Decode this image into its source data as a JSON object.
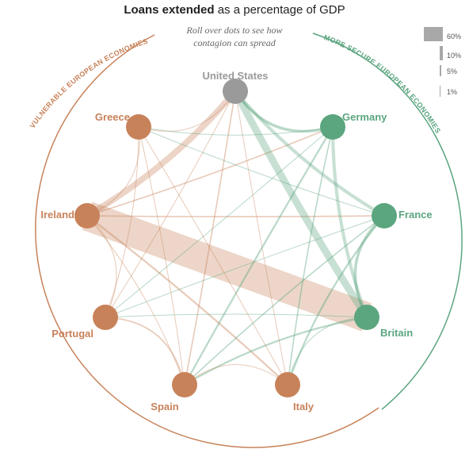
{
  "header": {
    "title_bold": "Loans extended",
    "title_rest": " as a percentage of GDP",
    "subtitle_line1": "Roll over dots to see how",
    "subtitle_line2": "contagion can spread"
  },
  "groups": {
    "vulnerable_label": "VULNERABLE EUROPEAN ECONOMIES",
    "secure_label": "MORE SECURE EUROPEAN ECONOMIES"
  },
  "colors": {
    "vulnerable": "#c8825a",
    "secure": "#5ba57f",
    "neutral": "#9a9a9a",
    "legend_swatch": "#a8a8a8"
  },
  "legend": [
    {
      "label": "60%",
      "value": 60
    },
    {
      "label": "10%",
      "value": 10
    },
    {
      "label": "5%",
      "value": 5
    },
    {
      "label": "1%",
      "value": 1
    }
  ],
  "nodes": [
    {
      "id": "us",
      "label": "United States",
      "group": "neutral"
    },
    {
      "id": "germany",
      "label": "Germany",
      "group": "secure"
    },
    {
      "id": "france",
      "label": "France",
      "group": "secure"
    },
    {
      "id": "britain",
      "label": "Britain",
      "group": "secure"
    },
    {
      "id": "italy",
      "label": "Italy",
      "group": "vulnerable"
    },
    {
      "id": "spain",
      "label": "Spain",
      "group": "vulnerable"
    },
    {
      "id": "portugal",
      "label": "Portugal",
      "group": "vulnerable"
    },
    {
      "id": "ireland",
      "label": "Ireland",
      "group": "vulnerable"
    },
    {
      "id": "greece",
      "label": "Greece",
      "group": "vulnerable"
    }
  ],
  "links": [
    {
      "from": "ireland",
      "to": "britain",
      "value": 60
    },
    {
      "from": "ireland",
      "to": "us",
      "value": 12
    },
    {
      "from": "ireland",
      "to": "france",
      "value": 2
    },
    {
      "from": "ireland",
      "to": "germany",
      "value": 2
    },
    {
      "from": "ireland",
      "to": "italy",
      "value": 3
    },
    {
      "from": "ireland",
      "to": "spain",
      "value": 1
    },
    {
      "from": "ireland",
      "to": "portugal",
      "value": 1
    },
    {
      "from": "ireland",
      "to": "greece",
      "value": 1
    },
    {
      "from": "us",
      "to": "britain",
      "value": 14
    },
    {
      "from": "us",
      "to": "france",
      "value": 6
    },
    {
      "from": "us",
      "to": "germany",
      "value": 5
    },
    {
      "from": "us",
      "to": "spain",
      "value": 2
    },
    {
      "from": "us",
      "to": "italy",
      "value": 1
    },
    {
      "from": "us",
      "to": "portugal",
      "value": 1
    },
    {
      "from": "us",
      "to": "greece",
      "value": 1
    },
    {
      "from": "germany",
      "to": "britain",
      "value": 6
    },
    {
      "from": "germany",
      "to": "spain",
      "value": 3
    },
    {
      "from": "germany",
      "to": "italy",
      "value": 2
    },
    {
      "from": "germany",
      "to": "portugal",
      "value": 1
    },
    {
      "from": "germany",
      "to": "greece",
      "value": 1
    },
    {
      "from": "france",
      "to": "britain",
      "value": 5
    },
    {
      "from": "france",
      "to": "italy",
      "value": 3
    },
    {
      "from": "france",
      "to": "spain",
      "value": 2
    },
    {
      "from": "france",
      "to": "portugal",
      "value": 1
    },
    {
      "from": "france",
      "to": "greece",
      "value": 1
    },
    {
      "from": "britain",
      "to": "spain",
      "value": 3
    },
    {
      "from": "britain",
      "to": "italy",
      "value": 1
    },
    {
      "from": "britain",
      "to": "portugal",
      "value": 1
    },
    {
      "from": "spain",
      "to": "portugal",
      "value": 2
    },
    {
      "from": "spain",
      "to": "italy",
      "value": 1
    },
    {
      "from": "spain",
      "to": "greece",
      "value": 1
    },
    {
      "from": "italy",
      "to": "greece",
      "value": 1
    },
    {
      "from": "portugal",
      "to": "greece",
      "value": 1
    }
  ]
}
